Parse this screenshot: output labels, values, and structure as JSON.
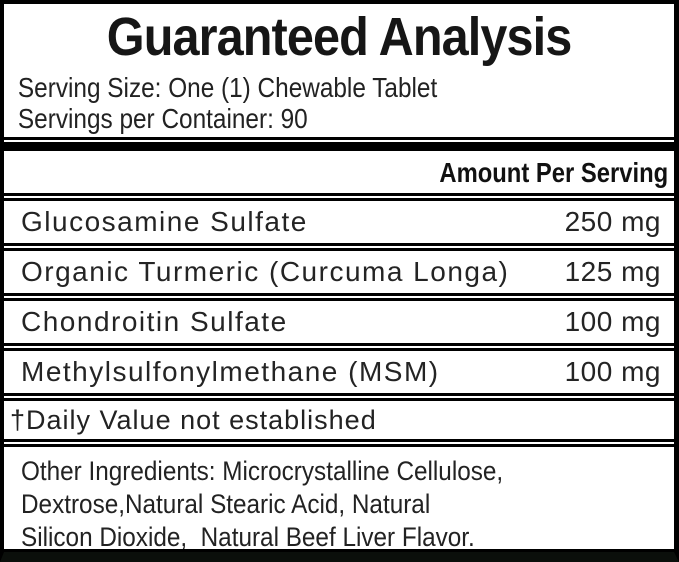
{
  "label": {
    "title": "Guaranteed Analysis",
    "serving_size": "Serving Size: One (1) Chewable Tablet",
    "servings_per_container": "Servings per Container: 90",
    "amount_header": "Amount Per Serving",
    "rows": [
      {
        "name": "Glucosamine Sulfate",
        "amount": "250 mg"
      },
      {
        "name": "Organic Turmeric (Curcuma Longa)",
        "amount": "125 mg"
      },
      {
        "name": "Chondroitin Sulfate",
        "amount": "100 mg"
      },
      {
        "name": "Methylsulfonylmethane (MSM)",
        "amount": "100 mg"
      }
    ],
    "footnote": "†Daily Value not established",
    "other_ingredients": {
      "line1": "Other Ingredients: Microcrystalline Cellulose,",
      "line2": "Dextrose,Natural Stearic Acid, Natural",
      "line3": "Silicon Dioxide,  Natural Beef Liver Flavor."
    },
    "colors": {
      "border": "#000000",
      "background": "#ffffff",
      "text": "#1c1c1c",
      "bottom_strip": "#0b0f0b"
    }
  }
}
